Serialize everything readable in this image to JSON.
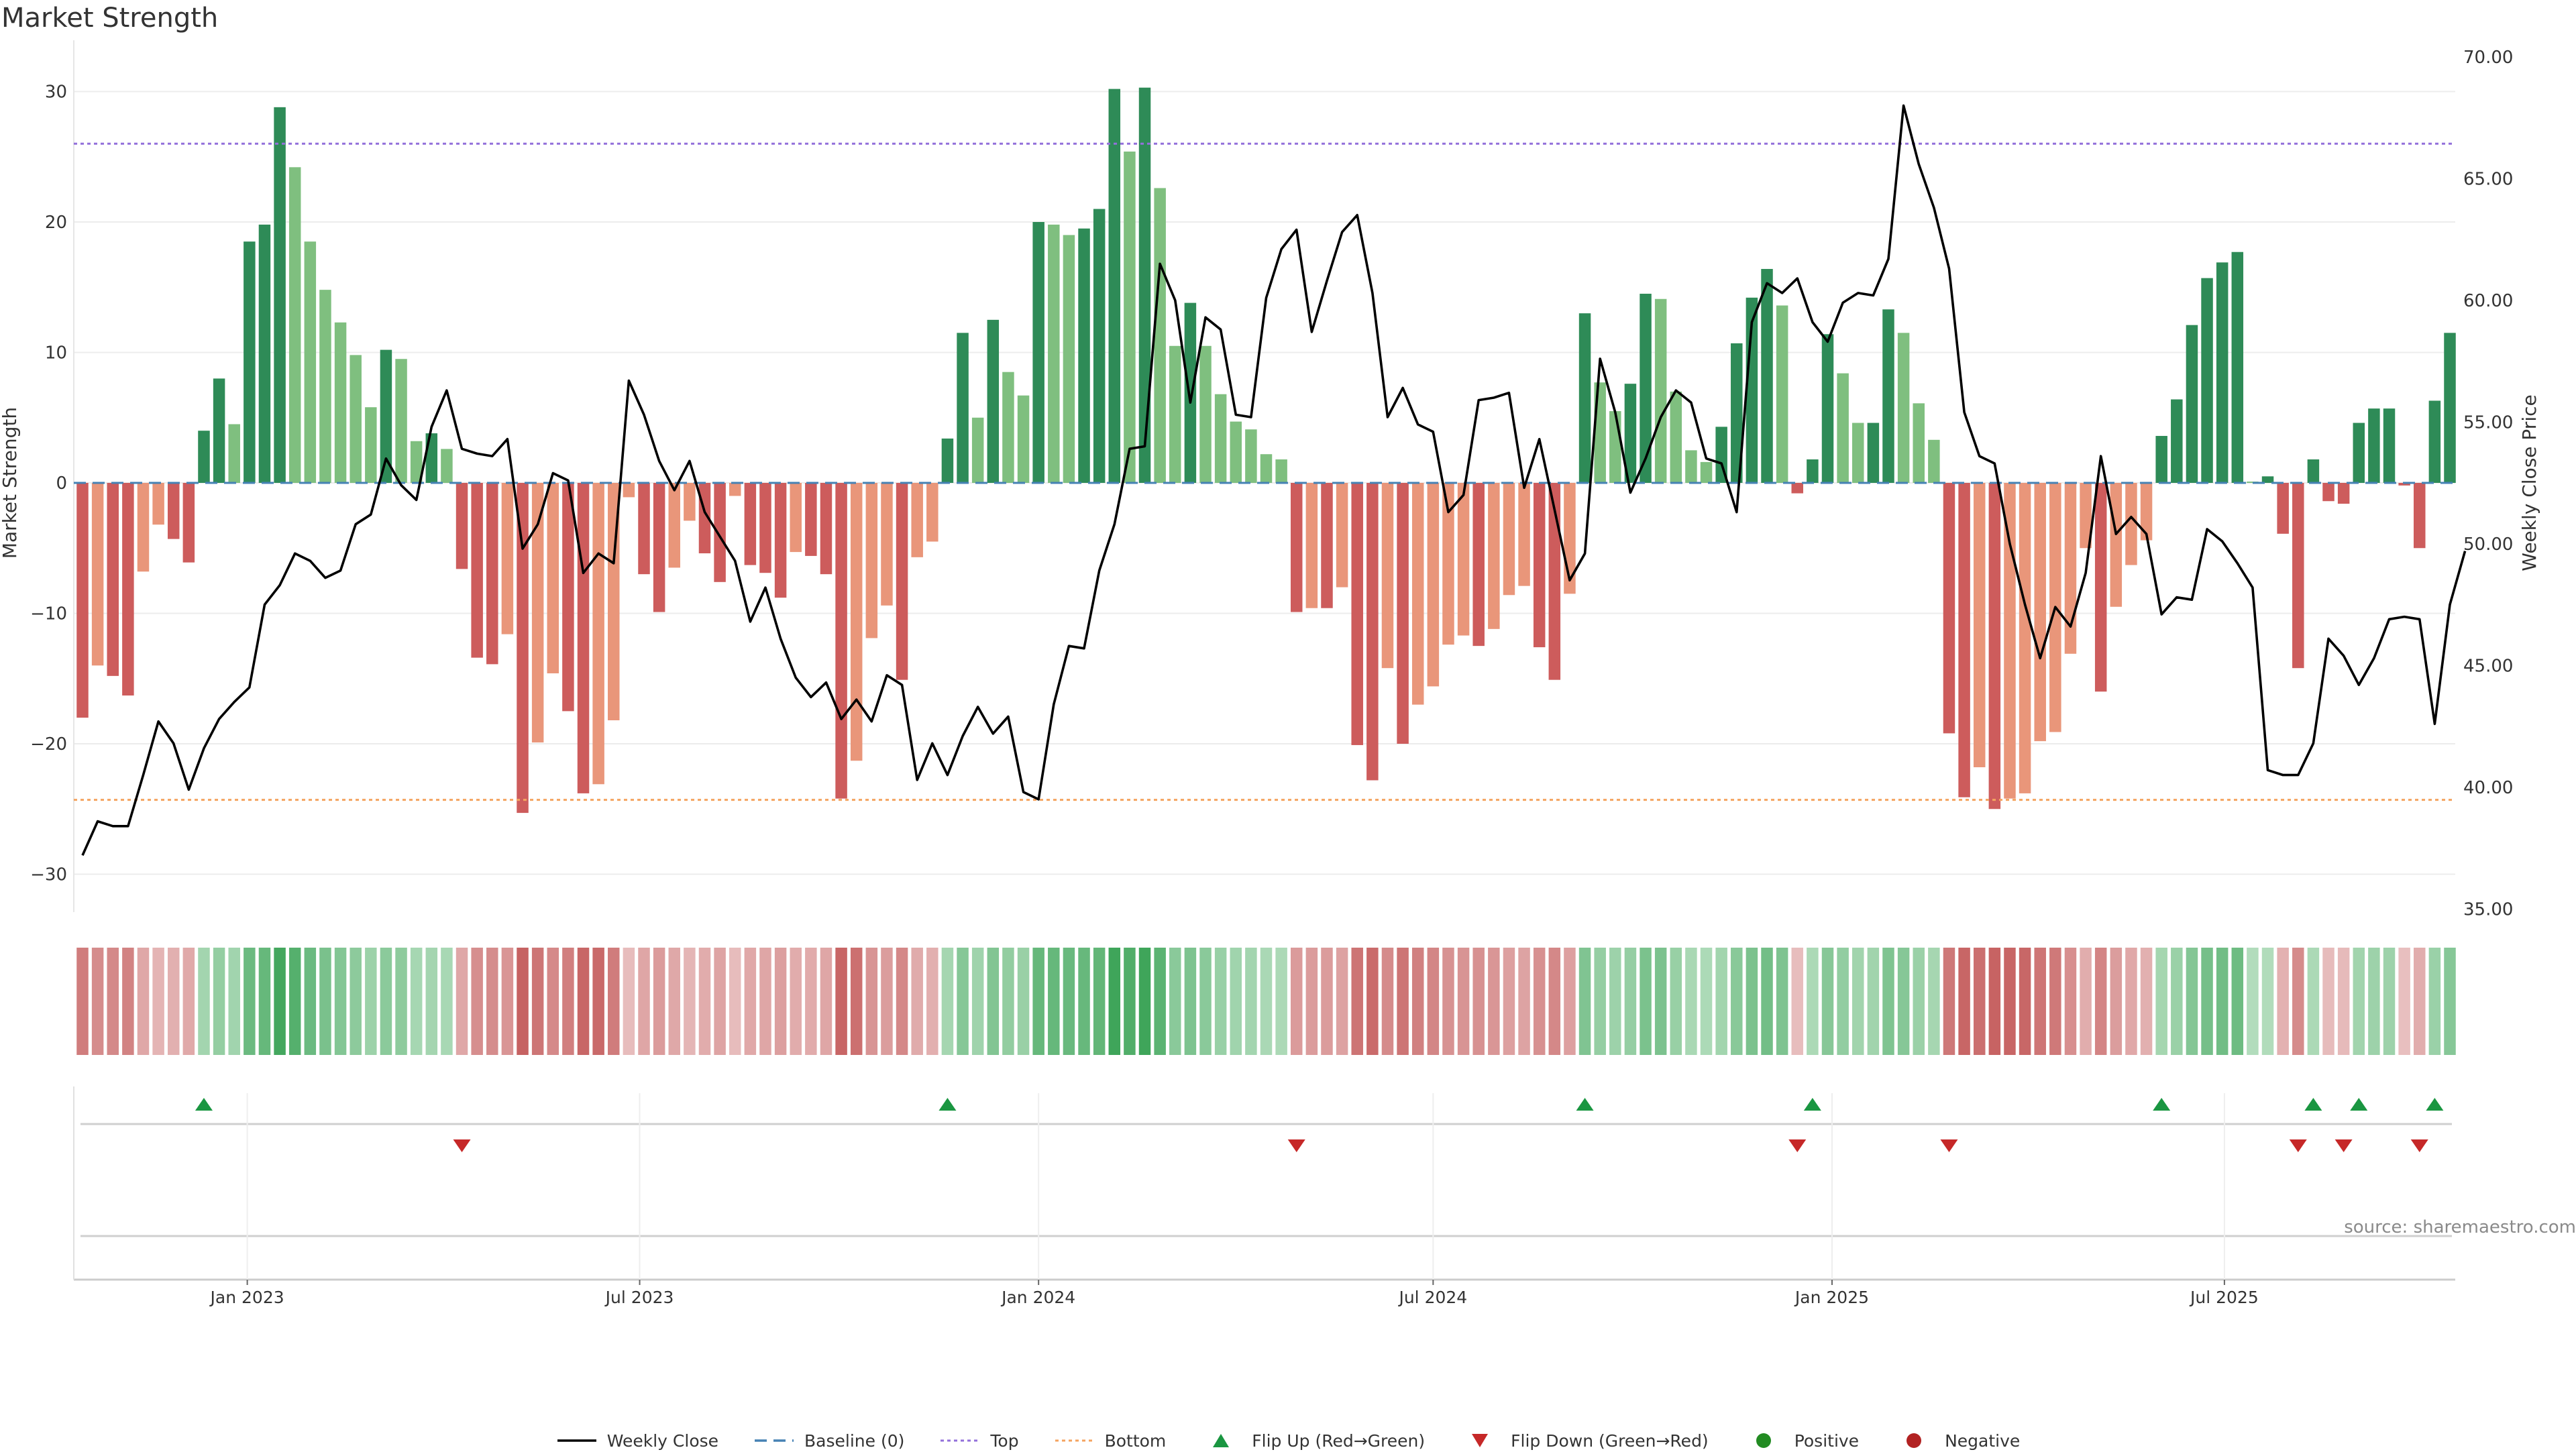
{
  "title": "Market Strength",
  "source": "source: sharemaestro.com",
  "colors": {
    "green_strong": "#2e8b57",
    "green_light": "#7fbf7f",
    "red_strong": "#cd5c5c",
    "red_light": "#e9967a",
    "top_line": "#9370db",
    "bottom_line": "#f4a460",
    "baseline": "#4682b4",
    "price": "#000000",
    "flip_up": "#1a9641",
    "flip_down": "#c62828",
    "positive": "#228b22",
    "negative": "#b22222"
  },
  "legend": [
    {
      "key": "weekly",
      "label": "Weekly Close"
    },
    {
      "key": "baseline",
      "label": "Baseline (0)"
    },
    {
      "key": "top",
      "label": "Top"
    },
    {
      "key": "bottom",
      "label": "Bottom"
    },
    {
      "key": "flipup",
      "label": "Flip Up (Red→Green)"
    },
    {
      "key": "flipdown",
      "label": "Flip Down (Green→Red)"
    },
    {
      "key": "positive",
      "label": "Positive"
    },
    {
      "key": "negative",
      "label": "Negative"
    }
  ],
  "chart_data": {
    "type": "bar",
    "title": "Market Strength",
    "ylabel": "Market Strength",
    "y2label": "Weekly Close Price",
    "ylim": [
      -33,
      31
    ],
    "y2lim": [
      34.5,
      70.5
    ],
    "yticks": [
      -30,
      -20,
      -10,
      0,
      10,
      20,
      30
    ],
    "y2ticks": [
      "35.00",
      "40.00",
      "45.00",
      "50.00",
      "55.00",
      "60.00",
      "65.00",
      "70.00"
    ],
    "xticks": [
      "Jan 2023",
      "Jul 2023",
      "Jan 2024",
      "Jul 2024",
      "Jan 2025",
      "Jul 2025"
    ],
    "top_level": 26,
    "bottom_level": -24.3,
    "grid": true,
    "legend_position": "bottom",
    "start_date": "2022-10-17",
    "strength": [
      -18,
      -14,
      -14.8,
      -16.3,
      -6.8,
      -3.2,
      -4.3,
      -6.1,
      4,
      8,
      4.5,
      18.5,
      19.8,
      28.8,
      24.2,
      18.5,
      14.8,
      12.3,
      9.8,
      5.8,
      10.2,
      9.5,
      3.2,
      3.8,
      2.6,
      -6.6,
      -13.4,
      -13.9,
      -11.6,
      -25.3,
      -19.9,
      -14.6,
      -17.5,
      -23.8,
      -23.1,
      -18.2,
      -1.1,
      -7,
      -9.9,
      -6.5,
      -2.9,
      -5.4,
      -7.6,
      -1,
      -6.3,
      -6.9,
      -8.8,
      -5.3,
      -5.6,
      -7,
      -24.2,
      -21.3,
      -11.9,
      -9.4,
      -15.1,
      -5.7,
      -4.5,
      3.4,
      11.5,
      5,
      12.5,
      8.5,
      6.7,
      20,
      19.8,
      19,
      19.5,
      21,
      30.2,
      25.4,
      30.3,
      22.6,
      10.5,
      13.8,
      10.5,
      6.8,
      4.7,
      4.1,
      2.2,
      1.8,
      -9.9,
      -9.6,
      -9.6,
      -8,
      -20.1,
      -22.8,
      -14.2,
      -20,
      -17,
      -15.6,
      -12.4,
      -11.7,
      -12.5,
      -11.2,
      -8.6,
      -7.9,
      -12.6,
      -15.1,
      -8.5,
      13,
      7.7,
      5.5,
      7.6,
      14.5,
      14.1,
      7,
      2.5,
      1.6,
      4.3,
      10.7,
      14.2,
      16.4,
      13.6,
      -0.8,
      1.8,
      11.4,
      8.4,
      4.6,
      4.6,
      13.3,
      11.5,
      6.1,
      3.3,
      -19.2,
      -24.1,
      -21.8,
      -25,
      -24.2,
      -23.8,
      -19.8,
      -19.1,
      -13.1,
      -5,
      -16,
      -9.5,
      -6.3,
      -4.4,
      3.6,
      6.4,
      12.1,
      15.7,
      16.9,
      17.7,
      0.1,
      0.5,
      -3.9,
      -14.2,
      1.8,
      -1.4,
      -1.6,
      4.6,
      5.7,
      5.7,
      -0.2,
      -5,
      6.3,
      11.5
    ],
    "weekly_close": [
      37.2,
      38.6,
      38.4,
      38.4,
      40.5,
      42.7,
      41.8,
      39.9,
      41.6,
      42.8,
      43.5,
      44.1,
      47.5,
      48.3,
      49.6,
      49.3,
      48.6,
      48.9,
      50.8,
      51.2,
      53.5,
      52.4,
      51.8,
      54.8,
      56.3,
      53.9,
      53.7,
      53.6,
      54.3,
      49.8,
      50.8,
      52.9,
      52.6,
      48.8,
      49.6,
      49.2,
      56.7,
      55.3,
      53.4,
      52.2,
      53.4,
      51.3,
      50.3,
      49.3,
      46.8,
      48.2,
      46.1,
      44.5,
      43.7,
      44.3,
      42.8,
      43.6,
      42.7,
      44.6,
      44.2,
      40.3,
      41.8,
      40.5,
      42.1,
      43.3,
      42.2,
      42.9,
      39.8,
      39.5,
      43.4,
      45.8,
      45.7,
      48.9,
      50.8,
      53.9,
      54,
      61.5,
      60,
      55.8,
      59.3,
      58.8,
      55.3,
      55.2,
      60.1,
      62.1,
      62.9,
      58.7,
      60.8,
      62.8,
      63.5,
      60.3,
      55.2,
      56.4,
      54.9,
      54.6,
      51.3,
      52,
      55.9,
      56,
      56.2,
      52.3,
      54.3,
      51.4,
      48.5,
      49.6,
      57.6,
      55.4,
      52.1,
      53.5,
      55.2,
      56.3,
      55.8,
      53.5,
      53.3,
      51.3,
      59.1,
      60.7,
      60.3,
      60.9,
      59.1,
      58.3,
      59.9,
      60.3,
      60.2,
      61.7,
      68,
      65.6,
      63.8,
      61.3,
      55.4,
      53.6,
      53.3,
      50,
      47.5,
      45.3,
      47.4,
      46.6,
      48.8,
      53.6,
      50.4,
      51.1,
      50.4,
      47.1,
      47.8,
      47.7,
      50.6,
      50.1,
      49.2,
      48.2,
      40.7,
      40.5,
      40.5,
      41.8,
      46.1,
      45.4,
      44.2,
      45.3,
      46.9,
      47,
      46.9,
      42.6,
      47.5,
      49.7
    ],
    "flip_up_index": [
      8,
      57,
      99,
      114,
      137,
      147,
      150,
      155
    ],
    "flip_down_index": [
      25,
      80,
      113,
      123,
      146,
      149,
      154
    ]
  }
}
